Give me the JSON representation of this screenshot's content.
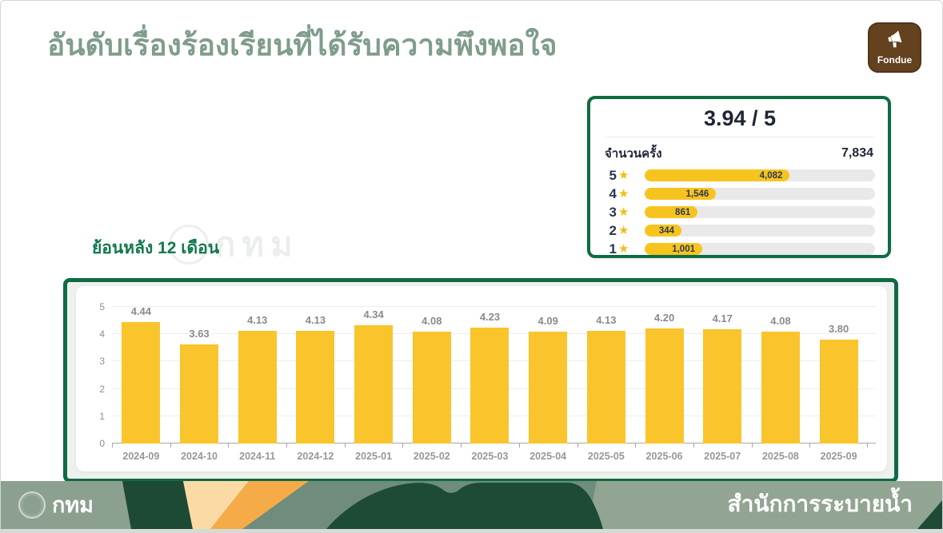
{
  "page": {
    "title": "อันดับเรื่องร้องเรียนที่ได้รับความพึงพอใจ",
    "section_label": "ย้อนหลัง 12 เดือน"
  },
  "fondue_badge": {
    "label": "Fondue",
    "icon": "megaphone-icon",
    "color": "#64411f"
  },
  "rating_summary": {
    "score": "3.94 / 5",
    "count_label": "จำนวนครั้ง",
    "count_value": "7,834",
    "star_icon": "★",
    "rows": [
      {
        "stars": "5",
        "value": "4,082",
        "bar_pct": 63
      },
      {
        "stars": "4",
        "value": "1,546",
        "bar_pct": 31
      },
      {
        "stars": "3",
        "value": "861",
        "bar_pct": 23
      },
      {
        "stars": "2",
        "value": "344",
        "bar_pct": 16
      },
      {
        "stars": "1",
        "value": "1,001",
        "bar_pct": 25
      }
    ]
  },
  "watermark": {
    "text": "กทม"
  },
  "chart_data": {
    "type": "bar",
    "title": "ย้อนหลัง 12 เดือน",
    "categories": [
      "2024-09",
      "2024-10",
      "2024-11",
      "2024-12",
      "2025-01",
      "2025-02",
      "2025-03",
      "2025-04",
      "2025-05",
      "2025-06",
      "2025-07",
      "2025-08",
      "2025-09"
    ],
    "values": [
      4.44,
      3.63,
      4.13,
      4.13,
      4.34,
      4.08,
      4.23,
      4.09,
      4.13,
      4.2,
      4.17,
      4.08,
      3.8
    ],
    "value_labels": [
      "4.44",
      "3.63",
      "4.13",
      "4.13",
      "4.34",
      "4.08",
      "4.23",
      "4.09",
      "4.13",
      "4.20",
      "4.17",
      "4.08",
      "3.80"
    ],
    "xlabel": "",
    "ylabel": "",
    "ylim": [
      0,
      5
    ],
    "yticks": [
      0,
      1,
      2,
      3,
      4,
      5
    ],
    "grid": true,
    "legend": false,
    "bar_color": "#fac42d"
  },
  "footer": {
    "org_label": "กทม",
    "department": "สำนักการระบายน้ำ"
  },
  "colors": {
    "accent_green": "#0f6b42",
    "title_green": "#7f9d8b",
    "label_green": "#12794a",
    "bar_yellow": "#fac42d",
    "rating_bar_yellow": "#f7c41f",
    "star_yellow": "#f5bd11",
    "track_gray": "#e9e9e9",
    "dark_text": "#1e2635",
    "fondue_brown": "#64411f",
    "footer_sage_left": "#8ca08f",
    "footer_sage_mid": "#6f8c7c",
    "footer_sage_right": "#92a592",
    "footer_dark_green": "#1e4b36",
    "footer_cream": "#fbdaa5",
    "footer_orange": "#f6ab49"
  }
}
